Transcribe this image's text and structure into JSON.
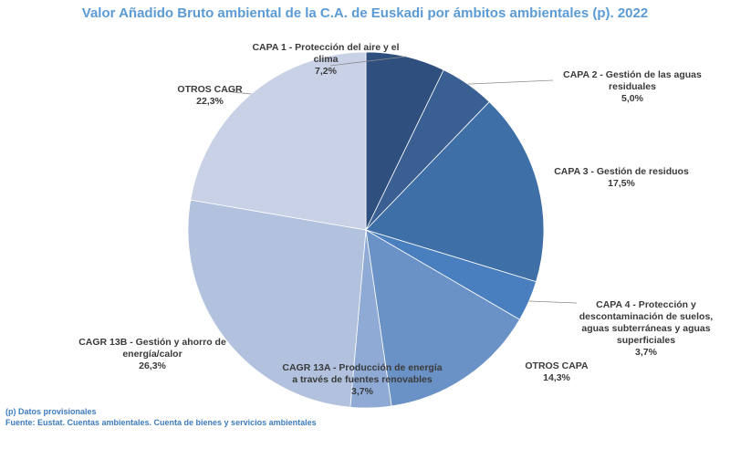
{
  "chart_data": {
    "type": "pie",
    "title": "Valor Añadido Bruto ambiental de la C.A. de Euskadi por ámbitos ambientales (p). 2022",
    "slices": [
      {
        "name": "CAPA 1 - Protección del aire y el clima",
        "value": 7.2,
        "label": "7,2%",
        "color": "#2f4f7f"
      },
      {
        "name": "CAPA 2 - Gestión de las aguas residuales",
        "value": 5.0,
        "label": "5,0%",
        "color": "#3a5f93"
      },
      {
        "name": "CAPA 3 - Gestión de residuos",
        "value": 17.5,
        "label": "17,5%",
        "color": "#3f6fa7"
      },
      {
        "name": "CAPA 4 - Protección y descontaminación de suelos, aguas subterráneas y aguas superficiales",
        "value": 3.7,
        "label": "3,7%",
        "color": "#4a7fbf"
      },
      {
        "name": "OTROS CAPA",
        "value": 14.3,
        "label": "14,3%",
        "color": "#6b92c6"
      },
      {
        "name": "CAGR 13A - Producción de energía a través de fuentes renovables",
        "value": 3.7,
        "label": "3,7%",
        "color": "#8eaad5"
      },
      {
        "name": "CAGR 13B - Gestión y ahorro de energía/calor",
        "value": 26.3,
        "label": "26,3%",
        "color": "#b1c1de"
      },
      {
        "name": "OTROS CAGR",
        "value": 22.3,
        "label": "22,3%",
        "color": "#c8d1e6"
      }
    ]
  },
  "labels": {
    "capa1": {
      "lines": [
        "CAPA 1 - Protección del aire y el",
        "clima"
      ],
      "pct": "7,2%"
    },
    "capa2": {
      "lines": [
        "CAPA 2 - Gestión de las aguas",
        "residuales"
      ],
      "pct": "5,0%"
    },
    "capa3": {
      "lines": [
        "CAPA 3 - Gestión de residuos"
      ],
      "pct": "17,5%"
    },
    "capa4": {
      "lines": [
        "CAPA 4 - Protección y",
        "descontaminación de suelos,",
        "aguas subterráneas y aguas",
        "superficiales"
      ],
      "pct": "3,7%"
    },
    "otros_capa": {
      "lines": [
        "OTROS CAPA"
      ],
      "pct": "14,3%"
    },
    "cagr13a": {
      "lines": [
        "CAGR 13A - Producción de energía",
        "a través de fuentes renovables"
      ],
      "pct": "3,7%"
    },
    "cagr13b": {
      "lines": [
        "CAGR 13B - Gestión y ahorro de",
        "energía/calor"
      ],
      "pct": "26,3%"
    },
    "otros_cagr": {
      "lines": [
        "OTROS CAGR"
      ],
      "pct": "22,3%"
    }
  },
  "footnotes": {
    "note1": "(p) Datos provisionales",
    "note2": "Fuente: Eustat. Cuentas ambientales. Cuenta de bienes y servicios ambientales"
  }
}
